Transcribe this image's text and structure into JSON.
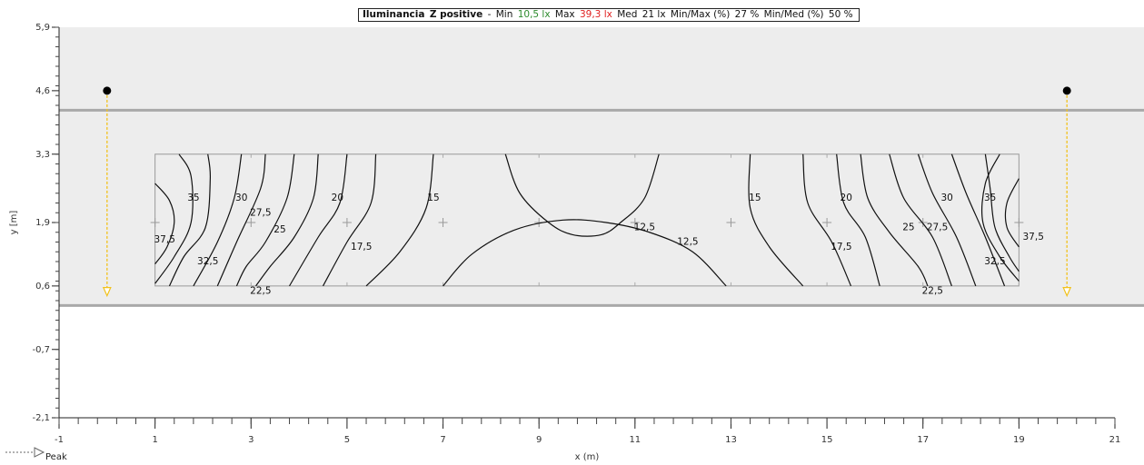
{
  "header": {
    "title": "Iluminancia",
    "plane": "Z positive",
    "dash": "-",
    "min_label": "Min",
    "min_value": "10,5 lx",
    "max_label": "Max",
    "max_value": "39,3 lx",
    "med_label": "Med",
    "med_value": "21 lx",
    "minmax_label": "Min/Max (%)",
    "minmax_value": "27 %",
    "minmed_label": "Min/Med (%)",
    "minmed_value": "50 %",
    "min_color": "#2e8b2e",
    "max_color": "#e02020"
  },
  "legend": {
    "peak_label": "Peak"
  },
  "chart_data": {
    "type": "contour",
    "xlabel": "x (m)",
    "ylabel": "y [m]",
    "xlim": [
      -1,
      21
    ],
    "ylim": [
      -2.1,
      5.9
    ],
    "x_ticks": [
      "-1",
      "1",
      "3",
      "5",
      "7",
      "9",
      "11",
      "13",
      "15",
      "17",
      "19",
      "21"
    ],
    "y_ticks": [
      "5,9",
      "4,6",
      "3,3",
      "1,9",
      "0,6",
      "-0,7",
      "-2,1"
    ],
    "road_band_y": [
      0.2,
      4.2
    ],
    "grid_area": {
      "x": [
        1,
        19
      ],
      "y": [
        0.6,
        3.3
      ]
    },
    "grid_points": [
      {
        "x": 1,
        "y": 1.9
      },
      {
        "x": 3,
        "y": 1.9
      },
      {
        "x": 5,
        "y": 1.9
      },
      {
        "x": 7,
        "y": 1.9
      },
      {
        "x": 9,
        "y": 1.9
      },
      {
        "x": 11,
        "y": 1.9
      },
      {
        "x": 13,
        "y": 1.9
      },
      {
        "x": 15,
        "y": 1.9
      },
      {
        "x": 17,
        "y": 1.9
      },
      {
        "x": 19,
        "y": 1.9
      }
    ],
    "luminaires": [
      {
        "x": 0,
        "y": 4.6,
        "aim_y": 0.4
      },
      {
        "x": 20,
        "y": 4.6,
        "aim_y": 0.4
      }
    ],
    "contours": [
      {
        "level": "37,5",
        "points": [
          [
            1,
            2.7
          ],
          [
            1.3,
            2.35
          ],
          [
            1.4,
            1.9
          ],
          [
            1.25,
            1.4
          ],
          [
            1,
            1.05
          ]
        ]
      },
      {
        "level": "35",
        "points": [
          [
            1.5,
            3.3
          ],
          [
            1.75,
            2.85
          ],
          [
            1.75,
            1.9
          ],
          [
            1.4,
            1.2
          ],
          [
            1,
            0.65
          ]
        ]
      },
      {
        "level": "32,5",
        "points": [
          [
            2.1,
            3.3
          ],
          [
            2.15,
            2.8
          ],
          [
            2.05,
            1.8
          ],
          [
            1.6,
            1.2
          ],
          [
            1.3,
            0.6
          ]
        ]
      },
      {
        "level": "30",
        "points": [
          [
            2.8,
            3.3
          ],
          [
            2.65,
            2.4
          ],
          [
            2.3,
            1.5
          ],
          [
            1.8,
            0.6
          ]
        ]
      },
      {
        "level": "27,5",
        "points": [
          [
            3.3,
            3.3
          ],
          [
            3.2,
            2.6
          ],
          [
            2.7,
            1.5
          ],
          [
            2.3,
            0.6
          ]
        ]
      },
      {
        "level": "25",
        "points": [
          [
            3.9,
            3.3
          ],
          [
            3.75,
            2.4
          ],
          [
            3.3,
            1.5
          ],
          [
            2.9,
            1.0
          ],
          [
            2.7,
            0.6
          ]
        ]
      },
      {
        "level": "22,5",
        "points": [
          [
            4.4,
            3.3
          ],
          [
            4.3,
            2.4
          ],
          [
            3.9,
            1.6
          ],
          [
            3.4,
            1.0
          ],
          [
            3.1,
            0.6
          ]
        ]
      },
      {
        "level": "20",
        "points": [
          [
            5,
            3.3
          ],
          [
            4.85,
            2.3
          ],
          [
            4.4,
            1.6
          ],
          [
            3.8,
            0.6
          ]
        ]
      },
      {
        "level": "17,5",
        "points": [
          [
            5.6,
            3.3
          ],
          [
            5.5,
            2.3
          ],
          [
            5,
            1.5
          ],
          [
            4.5,
            0.6
          ]
        ]
      },
      {
        "level": "15",
        "points": [
          [
            6.8,
            3.3
          ],
          [
            6.65,
            2.2
          ],
          [
            6.1,
            1.3
          ],
          [
            5.4,
            0.6
          ]
        ]
      },
      {
        "level": "12,5",
        "points": [
          [
            7,
            0.6
          ],
          [
            7.6,
            1.25
          ],
          [
            8.5,
            1.75
          ],
          [
            9.5,
            1.95
          ],
          [
            10.4,
            1.9
          ],
          [
            11.3,
            1.7
          ],
          [
            12.2,
            1.3
          ],
          [
            12.9,
            0.6
          ]
        ]
      },
      {
        "level": "12,5",
        "points": [
          [
            8.3,
            3.3
          ],
          [
            8.6,
            2.5
          ],
          [
            9.2,
            1.9
          ],
          [
            9.7,
            1.65
          ],
          [
            10.3,
            1.65
          ],
          [
            10.7,
            1.9
          ],
          [
            11.2,
            2.4
          ],
          [
            11.5,
            3.3
          ]
        ]
      },
      {
        "level": "15",
        "points": [
          [
            13.4,
            3.3
          ],
          [
            13.4,
            2.2
          ],
          [
            13.8,
            1.4
          ],
          [
            14.5,
            0.6
          ]
        ]
      },
      {
        "level": "17,5",
        "points": [
          [
            14.5,
            3.3
          ],
          [
            14.6,
            2.3
          ],
          [
            15.1,
            1.5
          ],
          [
            15.5,
            0.6
          ]
        ]
      },
      {
        "level": "20",
        "points": [
          [
            15.2,
            3.3
          ],
          [
            15.35,
            2.3
          ],
          [
            15.8,
            1.6
          ],
          [
            16.1,
            0.6
          ]
        ]
      },
      {
        "level": "22,5",
        "points": [
          [
            15.7,
            3.3
          ],
          [
            15.85,
            2.4
          ],
          [
            16.3,
            1.7
          ],
          [
            16.9,
            1.0
          ],
          [
            17.1,
            0.6
          ]
        ]
      },
      {
        "level": "25",
        "points": [
          [
            16.3,
            3.3
          ],
          [
            16.6,
            2.4
          ],
          [
            17.2,
            1.6
          ],
          [
            17.6,
            0.6
          ]
        ]
      },
      {
        "level": "27,5",
        "points": [
          [
            16.9,
            3.3
          ],
          [
            17.2,
            2.5
          ],
          [
            17.7,
            1.6
          ],
          [
            18.1,
            0.6
          ]
        ]
      },
      {
        "level": "30",
        "points": [
          [
            17.6,
            3.3
          ],
          [
            17.9,
            2.5
          ],
          [
            18.3,
            1.6
          ],
          [
            18.7,
            0.6
          ]
        ]
      },
      {
        "level": "32,5",
        "points": [
          [
            18.3,
            3.3
          ],
          [
            18.4,
            2.6
          ],
          [
            18.5,
            1.8
          ],
          [
            18.8,
            1.2
          ],
          [
            19,
            0.9
          ]
        ]
      },
      {
        "level": "35",
        "points": [
          [
            18.6,
            3.3
          ],
          [
            18.3,
            2.7
          ],
          [
            18.25,
            1.9
          ],
          [
            18.6,
            1.2
          ],
          [
            19,
            0.7
          ]
        ]
      },
      {
        "level": "37,5",
        "points": [
          [
            19,
            2.8
          ],
          [
            18.75,
            2.3
          ],
          [
            18.75,
            1.8
          ],
          [
            19,
            1.4
          ]
        ]
      }
    ],
    "contour_labels": [
      {
        "text": "35",
        "x": 1.8,
        "y": 2.4
      },
      {
        "text": "30",
        "x": 2.8,
        "y": 2.4
      },
      {
        "text": "27,5",
        "x": 3.2,
        "y": 2.1
      },
      {
        "text": "25",
        "x": 3.6,
        "y": 1.75
      },
      {
        "text": "37,5",
        "x": 1.2,
        "y": 1.55
      },
      {
        "text": "32,5",
        "x": 2.1,
        "y": 1.1
      },
      {
        "text": "22,5",
        "x": 3.2,
        "y": 0.5
      },
      {
        "text": "20",
        "x": 4.8,
        "y": 2.4
      },
      {
        "text": "17,5",
        "x": 5.3,
        "y": 1.4
      },
      {
        "text": "15",
        "x": 6.8,
        "y": 2.4
      },
      {
        "text": "12,5",
        "x": 11.2,
        "y": 1.8
      },
      {
        "text": "12,5",
        "x": 12.1,
        "y": 1.5
      },
      {
        "text": "15",
        "x": 13.5,
        "y": 2.4
      },
      {
        "text": "20",
        "x": 15.4,
        "y": 2.4
      },
      {
        "text": "17,5",
        "x": 15.3,
        "y": 1.4
      },
      {
        "text": "25",
        "x": 16.7,
        "y": 1.8
      },
      {
        "text": "27,5",
        "x": 17.3,
        "y": 1.8
      },
      {
        "text": "30",
        "x": 17.5,
        "y": 2.4
      },
      {
        "text": "35",
        "x": 18.4,
        "y": 2.4
      },
      {
        "text": "37,5",
        "x": 19.3,
        "y": 1.6
      },
      {
        "text": "32,5",
        "x": 18.5,
        "y": 1.1
      },
      {
        "text": "22,5",
        "x": 17.2,
        "y": 0.5
      }
    ],
    "colors": {
      "background_band": "#ededed",
      "road_line": "#a9a9a9",
      "contour": "#111111",
      "luminaire_arrow": "#f2c21b"
    }
  }
}
